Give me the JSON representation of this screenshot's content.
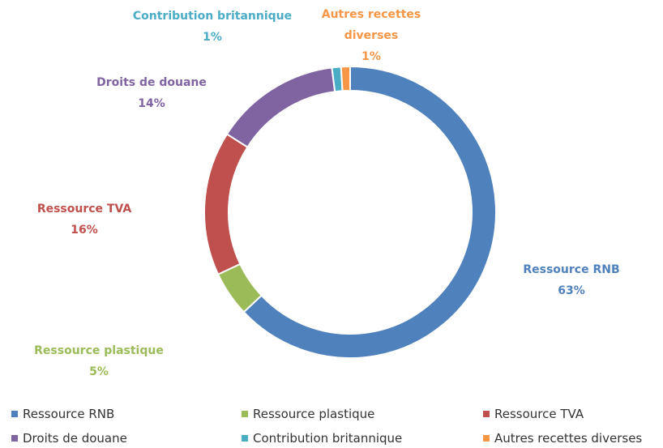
{
  "chart_data": {
    "type": "pie",
    "categories": [
      "Ressource RNB",
      "Ressource plastique",
      "Ressource TVA",
      "Droits de douane",
      "Contribution britannique",
      "Autres recettes diverses"
    ],
    "values": [
      63,
      5,
      16,
      14,
      1,
      1
    ],
    "value_labels": [
      "63%",
      "5%",
      "16%",
      "14%",
      "1%",
      "1%"
    ],
    "colors": [
      "#4f81bd",
      "#9bbb59",
      "#c0504d",
      "#8064a2",
      "#4bacc6",
      "#f79646"
    ],
    "donut": true,
    "legend": "bottom"
  }
}
